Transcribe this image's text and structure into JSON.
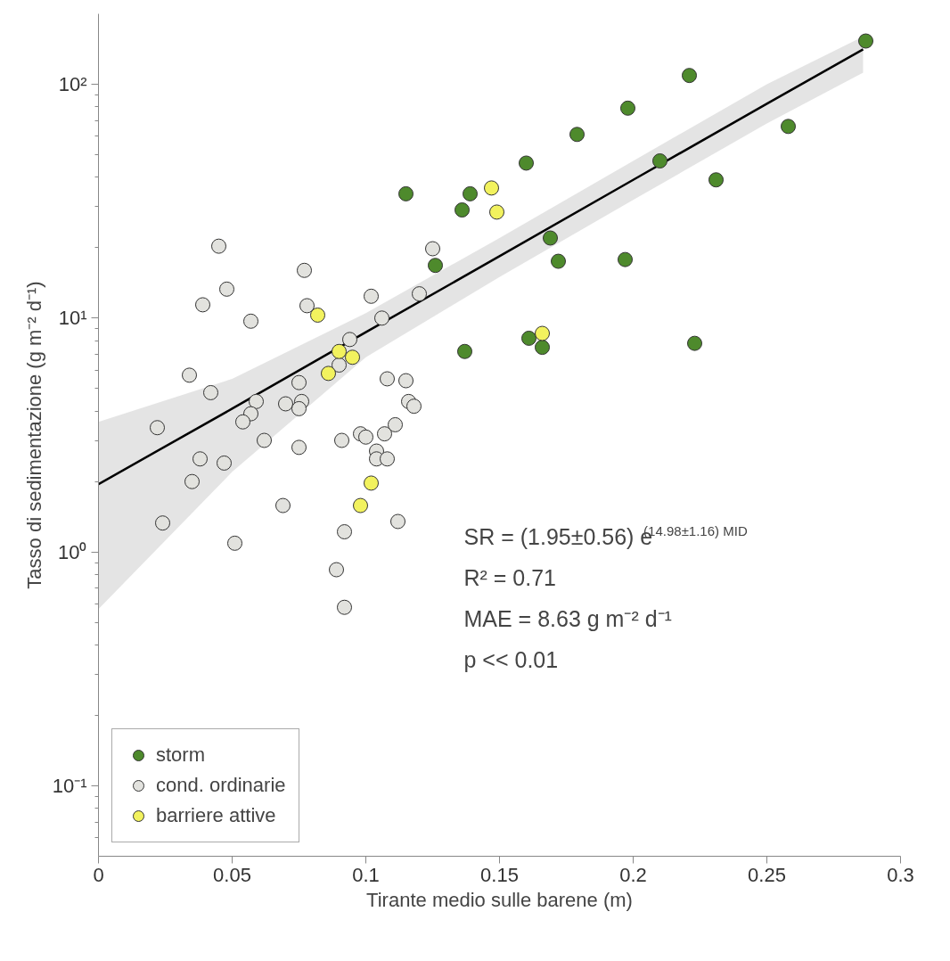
{
  "chart_data": {
    "type": "scatter",
    "xlabel": "Tirante medio sulle barene (m)",
    "ylabel": "Tasso di sedimentazione (g m⁻² d⁻¹)",
    "log": "y",
    "grid": false,
    "legend": "bottom left",
    "marker": "circle",
    "xlim": [
      0,
      0.3
    ],
    "xticks": [
      0,
      0.05,
      0.1,
      0.15,
      0.2,
      0.25,
      0.3
    ],
    "ylim": [
      0.05,
      200
    ],
    "yticks": [
      {
        "value": 0.06,
        "label": null
      },
      {
        "value": 0.07,
        "label": null
      },
      {
        "value": 0.08,
        "label": null
      },
      {
        "value": 0.09,
        "label": null
      },
      {
        "value": 0.1,
        "label": "10⁻¹"
      },
      {
        "value": 0.2,
        "label": null
      },
      {
        "value": 0.3,
        "label": null
      },
      {
        "value": 0.4,
        "label": null
      },
      {
        "value": 0.5,
        "label": null
      },
      {
        "value": 0.6,
        "label": null
      },
      {
        "value": 0.7,
        "label": null
      },
      {
        "value": 0.8,
        "label": null
      },
      {
        "value": 0.9,
        "label": null
      },
      {
        "value": 1,
        "label": "10⁰"
      },
      {
        "value": 2,
        "label": null
      },
      {
        "value": 3,
        "label": null
      },
      {
        "value": 4,
        "label": null
      },
      {
        "value": 5,
        "label": null
      },
      {
        "value": 6,
        "label": null
      },
      {
        "value": 7,
        "label": null
      },
      {
        "value": 8,
        "label": null
      },
      {
        "value": 9,
        "label": null
      },
      {
        "value": 10,
        "label": "10¹"
      },
      {
        "value": 20,
        "label": null
      },
      {
        "value": 30,
        "label": null
      },
      {
        "value": 40,
        "label": null
      },
      {
        "value": 50,
        "label": null
      },
      {
        "value": 60,
        "label": null
      },
      {
        "value": 70,
        "label": null
      },
      {
        "value": 80,
        "label": null
      },
      {
        "value": 90,
        "label": null
      },
      {
        "value": 100,
        "label": "10²"
      }
    ],
    "series": [
      {
        "type": "line",
        "color": "#000000",
        "line_style": "solid",
        "marker": "none",
        "x": [
          0,
          0.05,
          0.1,
          0.15,
          0.2,
          0.25,
          0.286
        ],
        "values": [
          1.95,
          4.1,
          8.7,
          18.4,
          39,
          82.5,
          141
        ],
        "lower": [
          0.57,
          2.2,
          6.8,
          15,
          32,
          68,
          112
        ],
        "upper": [
          3.6,
          5.5,
          10.5,
          22,
          47,
          100,
          160
        ]
      },
      {
        "name": "storm",
        "color": "#4e8a2c",
        "x": [
          0.287,
          0.221,
          0.198,
          0.179,
          0.16,
          0.21,
          0.258,
          0.231,
          0.139,
          0.136,
          0.115,
          0.169,
          0.172,
          0.197,
          0.126,
          0.161,
          0.166,
          0.223,
          0.137
        ],
        "values": [
          153,
          109,
          79,
          61,
          46,
          47,
          66,
          39,
          34,
          29,
          34,
          22,
          17.5,
          17.8,
          16.8,
          8.2,
          7.5,
          7.8,
          7.2
        ]
      },
      {
        "name": "cond. ordinarie",
        "color": "#e2e2de",
        "x": [
          0.045,
          0.077,
          0.048,
          0.039,
          0.057,
          0.078,
          0.102,
          0.12,
          0.125,
          0.106,
          0.094,
          0.09,
          0.075,
          0.034,
          0.042,
          0.059,
          0.057,
          0.054,
          0.07,
          0.076,
          0.075,
          0.108,
          0.115,
          0.116,
          0.118,
          0.111,
          0.107,
          0.098,
          0.1,
          0.091,
          0.062,
          0.075,
          0.104,
          0.104,
          0.108,
          0.022,
          0.038,
          0.047,
          0.035,
          0.069,
          0.024,
          0.112,
          0.092,
          0.051,
          0.089,
          0.092
        ],
        "values": [
          20.3,
          16,
          13.3,
          11.4,
          9.7,
          11.3,
          12.4,
          12.7,
          19.8,
          10,
          8.1,
          6.3,
          5.3,
          5.7,
          4.8,
          4.4,
          3.9,
          3.6,
          4.3,
          4.4,
          4.1,
          5.5,
          5.4,
          4.4,
          4.2,
          3.5,
          3.2,
          3.2,
          3.1,
          3,
          3,
          2.8,
          2.7,
          2.5,
          2.5,
          3.4,
          2.5,
          2.4,
          2,
          1.58,
          1.33,
          1.35,
          1.22,
          1.09,
          0.84,
          0.58
        ]
      },
      {
        "name": "barriere attive",
        "color": "#f2f25e",
        "x": [
          0.147,
          0.149,
          0.166,
          0.082,
          0.09,
          0.095,
          0.086,
          0.102,
          0.098
        ],
        "values": [
          36,
          28.4,
          8.6,
          10.3,
          7.2,
          6.8,
          5.8,
          1.97,
          1.58
        ]
      }
    ],
    "annotations": [
      "SR = (1.95±0.56) e$^{(14.98±1.16) MID}$",
      "R² = 0.71",
      "MAE = 8.63 g m⁻² d⁻¹",
      "p << 0.01"
    ]
  }
}
